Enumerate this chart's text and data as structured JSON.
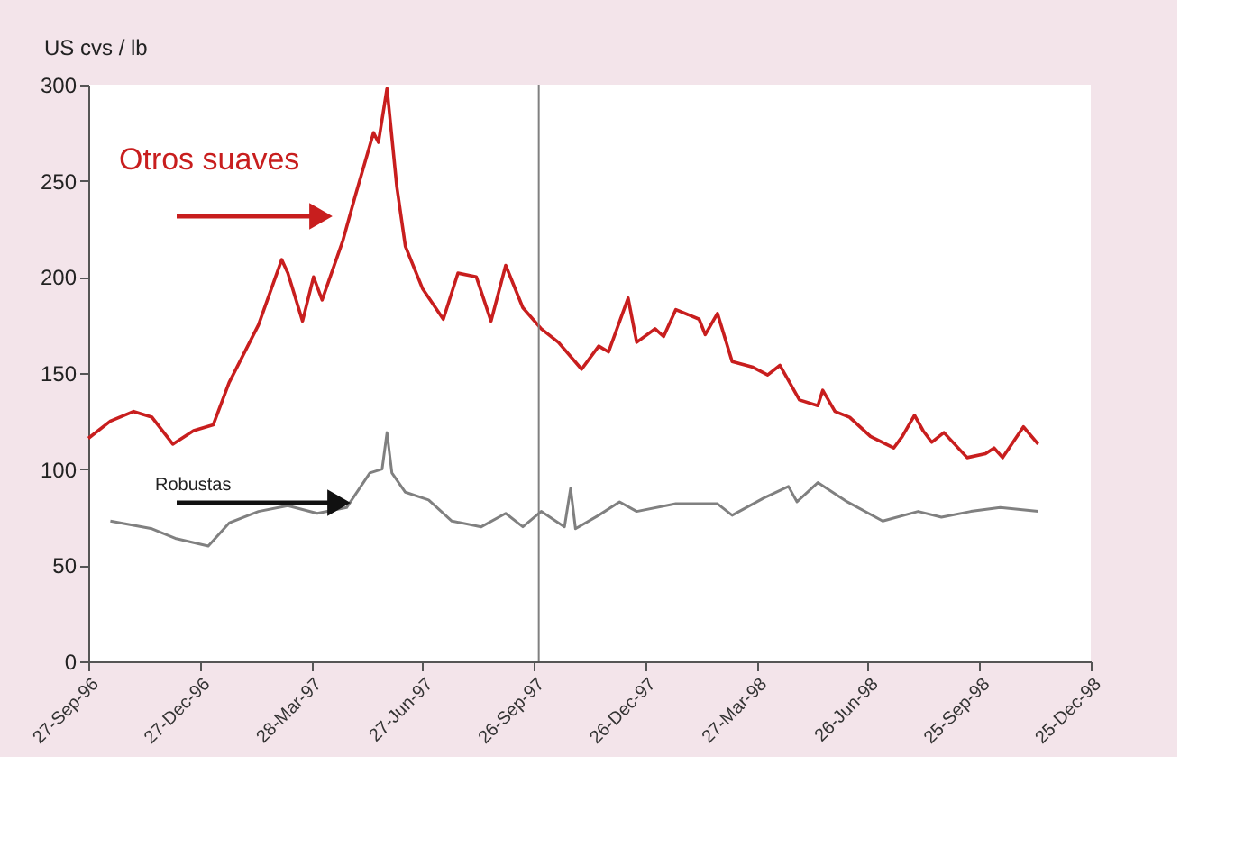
{
  "chart_data": {
    "type": "line",
    "ylabel": "US cvs / lb",
    "xlim": [
      "1996-09-27",
      "1998-12-25"
    ],
    "xticks": [
      {
        "value": "1996-09-27",
        "label": "27-Sep-96"
      },
      {
        "value": "1996-12-27",
        "label": "27-Dec-96"
      },
      {
        "value": "1997-03-28",
        "label": "28-Mar-97"
      },
      {
        "value": "1997-06-27",
        "label": "27-Jun-97"
      },
      {
        "value": "1997-09-26",
        "label": "26-Sep-97"
      },
      {
        "value": "1997-12-26",
        "label": "26-Dec-97"
      },
      {
        "value": "1998-03-27",
        "label": "27-Mar-98"
      },
      {
        "value": "1998-06-26",
        "label": "26-Jun-98"
      },
      {
        "value": "1998-09-25",
        "label": "25-Sep-98"
      },
      {
        "value": "1998-12-25",
        "label": "25-Dec-98"
      }
    ],
    "ylim": [
      0,
      300
    ],
    "yticks": [
      0,
      50,
      100,
      150,
      200,
      250,
      300
    ],
    "grid": false,
    "legend": false,
    "marker": "none",
    "line_style": "solid",
    "ref_lines": [
      {
        "axis": "x",
        "value": "1997-09-30",
        "color": "#808080"
      }
    ],
    "series": [
      {
        "name": "Otros suaves",
        "color": "#c81e1e",
        "x": [
          "1996-09-27",
          "1996-10-15",
          "1996-11-03",
          "1996-11-18",
          "1996-12-05",
          "1996-12-22",
          "1997-01-07",
          "1997-01-20",
          "1997-02-13",
          "1997-03-04",
          "1997-03-09",
          "1997-03-21",
          "1997-03-30",
          "1997-04-06",
          "1997-04-23",
          "1997-05-03",
          "1997-05-18",
          "1997-05-22",
          "1997-05-29",
          "1997-06-06",
          "1997-06-13",
          "1997-06-27",
          "1997-07-14",
          "1997-07-26",
          "1997-08-10",
          "1997-08-22",
          "1997-09-03",
          "1997-09-17",
          "1997-10-02",
          "1997-10-16",
          "1997-11-04",
          "1997-11-18",
          "1997-11-26",
          "1997-12-12",
          "1997-12-19",
          "1998-01-03",
          "1998-01-10",
          "1998-01-20",
          "1998-02-08",
          "1998-02-13",
          "1998-02-23",
          "1998-03-07",
          "1998-03-24",
          "1998-04-05",
          "1998-04-15",
          "1998-05-01",
          "1998-05-16",
          "1998-05-20",
          "1998-05-30",
          "1998-06-11",
          "1998-06-28",
          "1998-07-17",
          "1998-07-24",
          "1998-08-03",
          "1998-08-10",
          "1998-08-17",
          "1998-08-27",
          "1998-09-15",
          "1998-09-30",
          "1998-10-07",
          "1998-10-14",
          "1998-10-31",
          "1998-11-12"
        ],
        "values": [
          116,
          125,
          130,
          127,
          113,
          120,
          123,
          145,
          175,
          209,
          202,
          177,
          200,
          188,
          219,
          242,
          275,
          270,
          298,
          247,
          216,
          194,
          178,
          202,
          200,
          177,
          206,
          184,
          173,
          166,
          152,
          164,
          161,
          189,
          166,
          173,
          169,
          183,
          178,
          170,
          181,
          156,
          153,
          149,
          154,
          136,
          133,
          141,
          130,
          127,
          117,
          111,
          117,
          128,
          120,
          114,
          119,
          106,
          108,
          111,
          106,
          122,
          113
        ]
      },
      {
        "name": "Robustas",
        "color": "#808080",
        "x": [
          "1996-10-15",
          "1996-11-18",
          "1996-12-07",
          "1997-01-03",
          "1997-01-20",
          "1997-02-13",
          "1997-03-09",
          "1997-04-02",
          "1997-04-26",
          "1997-05-15",
          "1997-05-25",
          "1997-05-29",
          "1997-06-02",
          "1997-06-13",
          "1997-07-02",
          "1997-07-21",
          "1997-08-14",
          "1997-09-03",
          "1997-09-17",
          "1997-10-02",
          "1997-10-21",
          "1997-10-26",
          "1997-10-30",
          "1997-11-18",
          "1997-12-05",
          "1997-12-19",
          "1998-01-20",
          "1998-02-23",
          "1998-03-07",
          "1998-04-02",
          "1998-04-22",
          "1998-04-29",
          "1998-05-16",
          "1998-06-09",
          "1998-07-08",
          "1998-08-06",
          "1998-08-25",
          "1998-09-18",
          "1998-10-12",
          "1998-11-12"
        ],
        "values": [
          73,
          69,
          64,
          60,
          72,
          78,
          81,
          77,
          80,
          98,
          100,
          119,
          98,
          88,
          84,
          73,
          70,
          77,
          70,
          78,
          70,
          90,
          69,
          76,
          83,
          78,
          82,
          82,
          76,
          85,
          91,
          83,
          93,
          83,
          73,
          78,
          75,
          78,
          80,
          78
        ]
      }
    ]
  }
}
